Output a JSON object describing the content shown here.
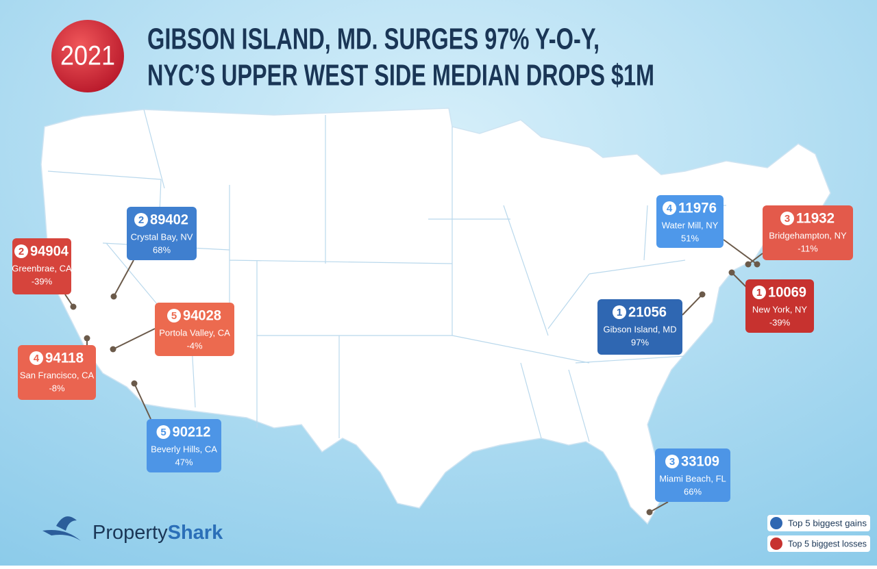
{
  "badge": "2021",
  "title": [
    "GIBSON ISLAND, MD. SURGES 97% Y-O-Y,",
    "NYC’S UPPER WEST SIDE MEDIAN DROPS $1M"
  ],
  "callouts": [
    {
      "rank": "2",
      "zip": "94904",
      "place": "Greenbrae, CA",
      "change": "-39%",
      "color": "#d6443c"
    },
    {
      "rank": "2",
      "zip": "89402",
      "place": "Crystal Bay, NV",
      "change": "68%",
      "color": "#3f7fcf"
    },
    {
      "rank": "5",
      "zip": "94028",
      "place": "Portola Valley, CA",
      "change": "-4%",
      "color": "#ec6a4f"
    },
    {
      "rank": "4",
      "zip": "94118",
      "place": "San Francisco, CA",
      "change": "-8%",
      "color": "#ea6450"
    },
    {
      "rank": "5",
      "zip": "90212",
      "place": "Beverly Hills, CA",
      "change": "47%",
      "color": "#4d95e6"
    },
    {
      "rank": "4",
      "zip": "11976",
      "place": "Water Mill, NY",
      "change": "51%",
      "color": "#4e98ea"
    },
    {
      "rank": "3",
      "zip": "11932",
      "place": "Bridgehampton, NY",
      "change": "-11%",
      "color": "#e35a4b"
    },
    {
      "rank": "1",
      "zip": "10069",
      "place": "New York, NY",
      "change": "-39%",
      "color": "#c7322f"
    },
    {
      "rank": "1",
      "zip": "21056",
      "place": "Gibson Island, MD",
      "change": "97%",
      "color": "#2f67b2"
    },
    {
      "rank": "3",
      "zip": "33109",
      "place": "Miami Beach, FL",
      "change": "66%",
      "color": "#4d95e6"
    }
  ],
  "legend": [
    {
      "label": "Top 5 biggest gains",
      "color": "#2f67b2"
    },
    {
      "label": "Top 5 biggest losses",
      "color": "#c7322f"
    }
  ],
  "logo": {
    "light": "Property",
    "bold": "Shark"
  }
}
